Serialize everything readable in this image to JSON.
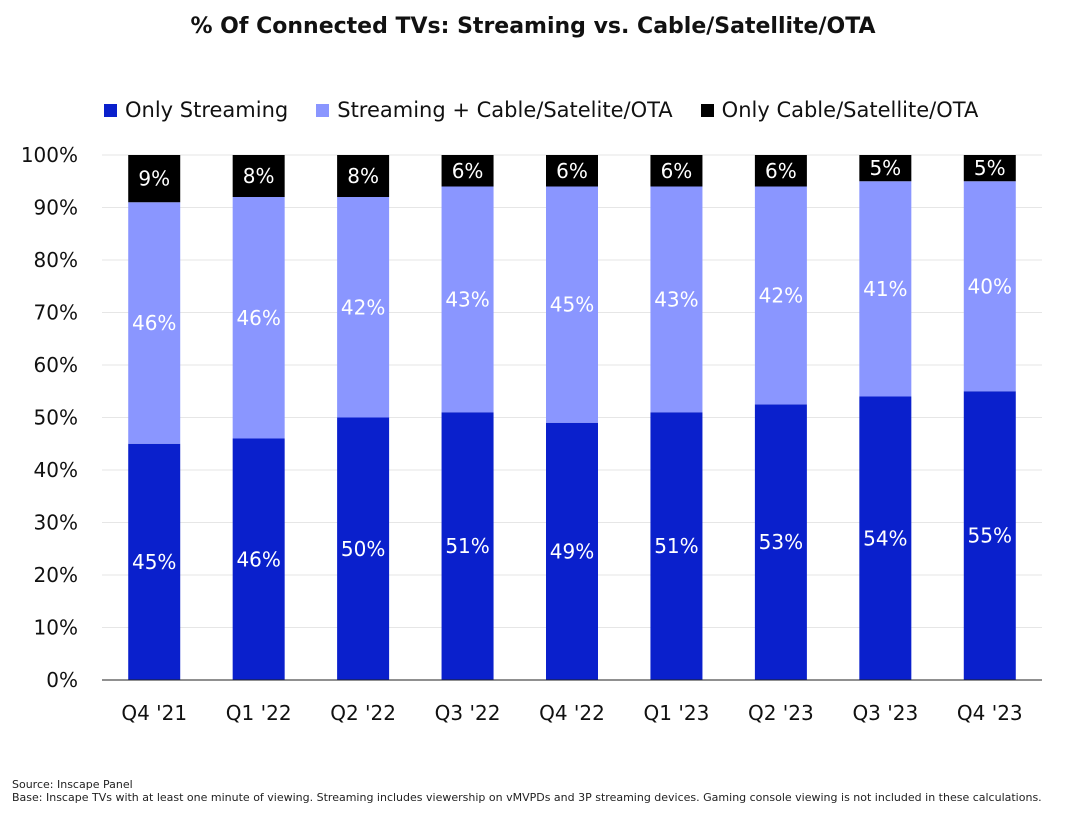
{
  "chart_data": {
    "type": "bar",
    "stacked": true,
    "title": "% Of Connected TVs: Streaming vs. Cable/Satellite/OTA",
    "xlabel": "",
    "ylabel": "",
    "ylim": [
      0,
      100
    ],
    "yticks": [
      "0%",
      "10%",
      "20%",
      "30%",
      "40%",
      "50%",
      "60%",
      "70%",
      "80%",
      "90%",
      "100%"
    ],
    "grid": true,
    "legend_position": "top-left",
    "categories": [
      "Q4 '21",
      "Q1 '22",
      "Q2 '22",
      "Q3 '22",
      "Q4 '22",
      "Q1 '23",
      "Q2 '23",
      "Q3 '23",
      "Q4 '23"
    ],
    "series": [
      {
        "name": "Only Streaming",
        "color": "#0a20cc",
        "label_color": "#ffffff",
        "values": [
          45,
          46,
          50,
          51,
          49,
          51,
          52.5,
          54,
          55
        ],
        "labels": [
          "45%",
          "46%",
          "50%",
          "51%",
          "49%",
          "51%",
          "53%",
          "54%",
          "55%"
        ]
      },
      {
        "name": "Streaming + Cable/Satelite/OTA",
        "color": "#8a96ff",
        "label_color": "#ffffff",
        "values": [
          46,
          46,
          42,
          43,
          45,
          43,
          41.5,
          41,
          40
        ],
        "labels": [
          "46%",
          "46%",
          "42%",
          "43%",
          "45%",
          "43%",
          "42%",
          "41%",
          "40%"
        ]
      },
      {
        "name": "Only Cable/Satellite/OTA",
        "color": "#000000",
        "label_color": "#ffffff",
        "values": [
          9,
          8,
          8,
          6,
          6,
          6,
          6,
          5,
          5
        ],
        "labels": [
          "9%",
          "8%",
          "8%",
          "6%",
          "6%",
          "6%",
          "6%",
          "5%",
          "5%"
        ]
      }
    ]
  },
  "footnote": {
    "source": "Source: Inscape Panel",
    "base": "Base: Inscape TVs with at least one minute of viewing. Streaming includes viewership on vMVPDs and 3P streaming devices. Gaming console viewing is not included in these calculations."
  }
}
